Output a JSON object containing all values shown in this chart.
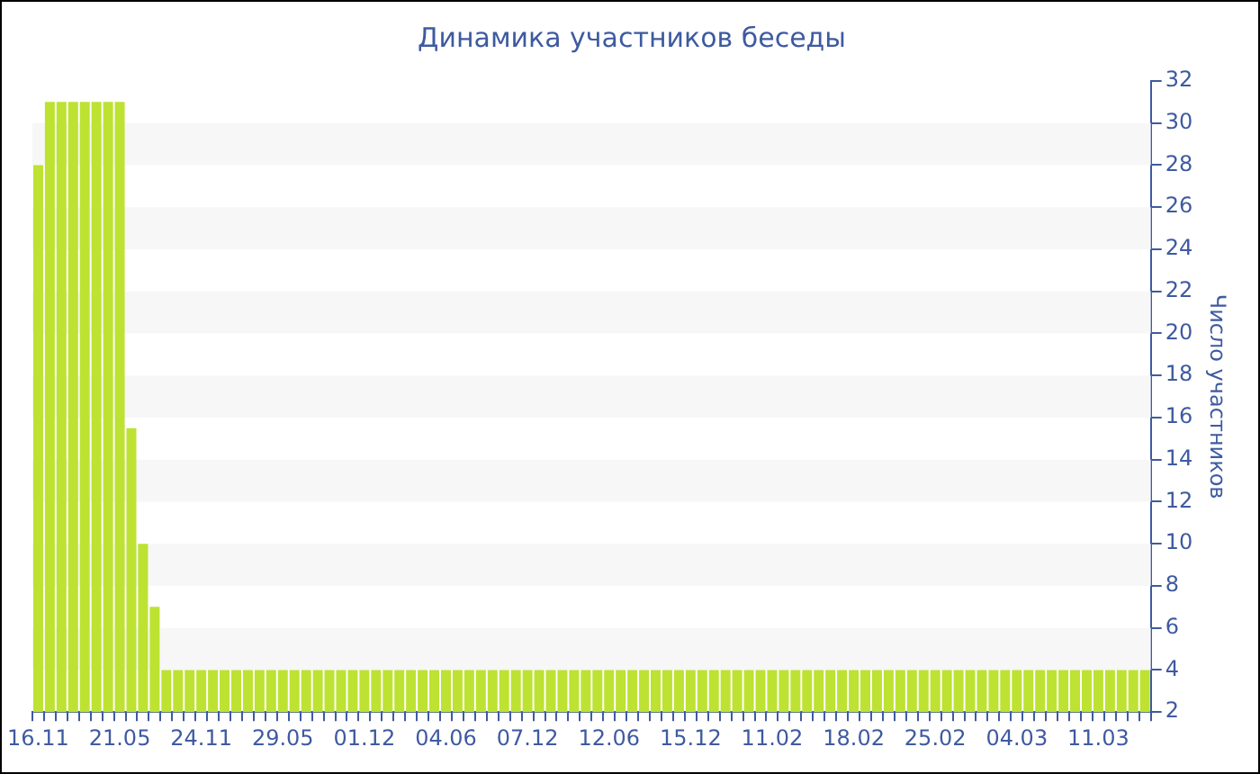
{
  "chart_data": {
    "type": "bar",
    "title": "Динамика участников беседы",
    "ylabel": "Число участников",
    "categories": [
      "16.11",
      null,
      null,
      null,
      null,
      null,
      null,
      "21.05",
      null,
      null,
      null,
      null,
      null,
      null,
      "24.11",
      null,
      null,
      null,
      null,
      null,
      null,
      "29.05",
      null,
      null,
      null,
      null,
      null,
      null,
      "01.12",
      null,
      null,
      null,
      null,
      null,
      null,
      "04.06",
      null,
      null,
      null,
      null,
      null,
      null,
      "07.12",
      null,
      null,
      null,
      null,
      null,
      null,
      "12.06",
      null,
      null,
      null,
      null,
      null,
      null,
      "15.12",
      null,
      null,
      null,
      null,
      null,
      null,
      "11.02",
      null,
      null,
      null,
      null,
      null,
      null,
      "18.02",
      null,
      null,
      null,
      null,
      null,
      null,
      "25.02",
      null,
      null,
      null,
      null,
      null,
      null,
      "04.03",
      null,
      null,
      null,
      null,
      null,
      null,
      "11.03",
      null,
      null,
      null,
      null
    ],
    "values": [
      28,
      31,
      31,
      31,
      31,
      31,
      31,
      31,
      15.5,
      10,
      7,
      4,
      4,
      4,
      4,
      4,
      4,
      4,
      4,
      4,
      4,
      4,
      4,
      4,
      4,
      4,
      4,
      4,
      4,
      4,
      4,
      4,
      4,
      4,
      4,
      4,
      4,
      4,
      4,
      4,
      4,
      4,
      4,
      4,
      4,
      4,
      4,
      4,
      4,
      4,
      4,
      4,
      4,
      4,
      4,
      4,
      4,
      4,
      4,
      4,
      4,
      4,
      4,
      4,
      4,
      4,
      4,
      4,
      4,
      4,
      4,
      4,
      4,
      4,
      4,
      4,
      4,
      4,
      4,
      4,
      4,
      4,
      4,
      4,
      4,
      4,
      4,
      4,
      4,
      4,
      4,
      4,
      4,
      4,
      4,
      4
    ],
    "color": "#bde232",
    "ylim": [
      2,
      32
    ],
    "yticks": [
      2,
      4,
      6,
      8,
      10,
      12,
      14,
      16,
      18,
      20,
      22,
      24,
      26,
      28,
      30,
      32
    ],
    "bands": [
      {
        "axis": "y",
        "from": 4,
        "to": 6,
        "color": "#f7f7f7"
      },
      {
        "axis": "y",
        "from": 8,
        "to": 10,
        "color": "#f7f7f7"
      },
      {
        "axis": "y",
        "from": 12,
        "to": 14,
        "color": "#f7f7f7"
      },
      {
        "axis": "y",
        "from": 16,
        "to": 18,
        "color": "#f7f7f7"
      },
      {
        "axis": "y",
        "from": 20,
        "to": 22,
        "color": "#f7f7f7"
      },
      {
        "axis": "y",
        "from": 24,
        "to": 26,
        "color": "#f7f7f7"
      },
      {
        "axis": "y",
        "from": 28,
        "to": 30,
        "color": "#f7f7f7"
      }
    ],
    "legend": false
  }
}
